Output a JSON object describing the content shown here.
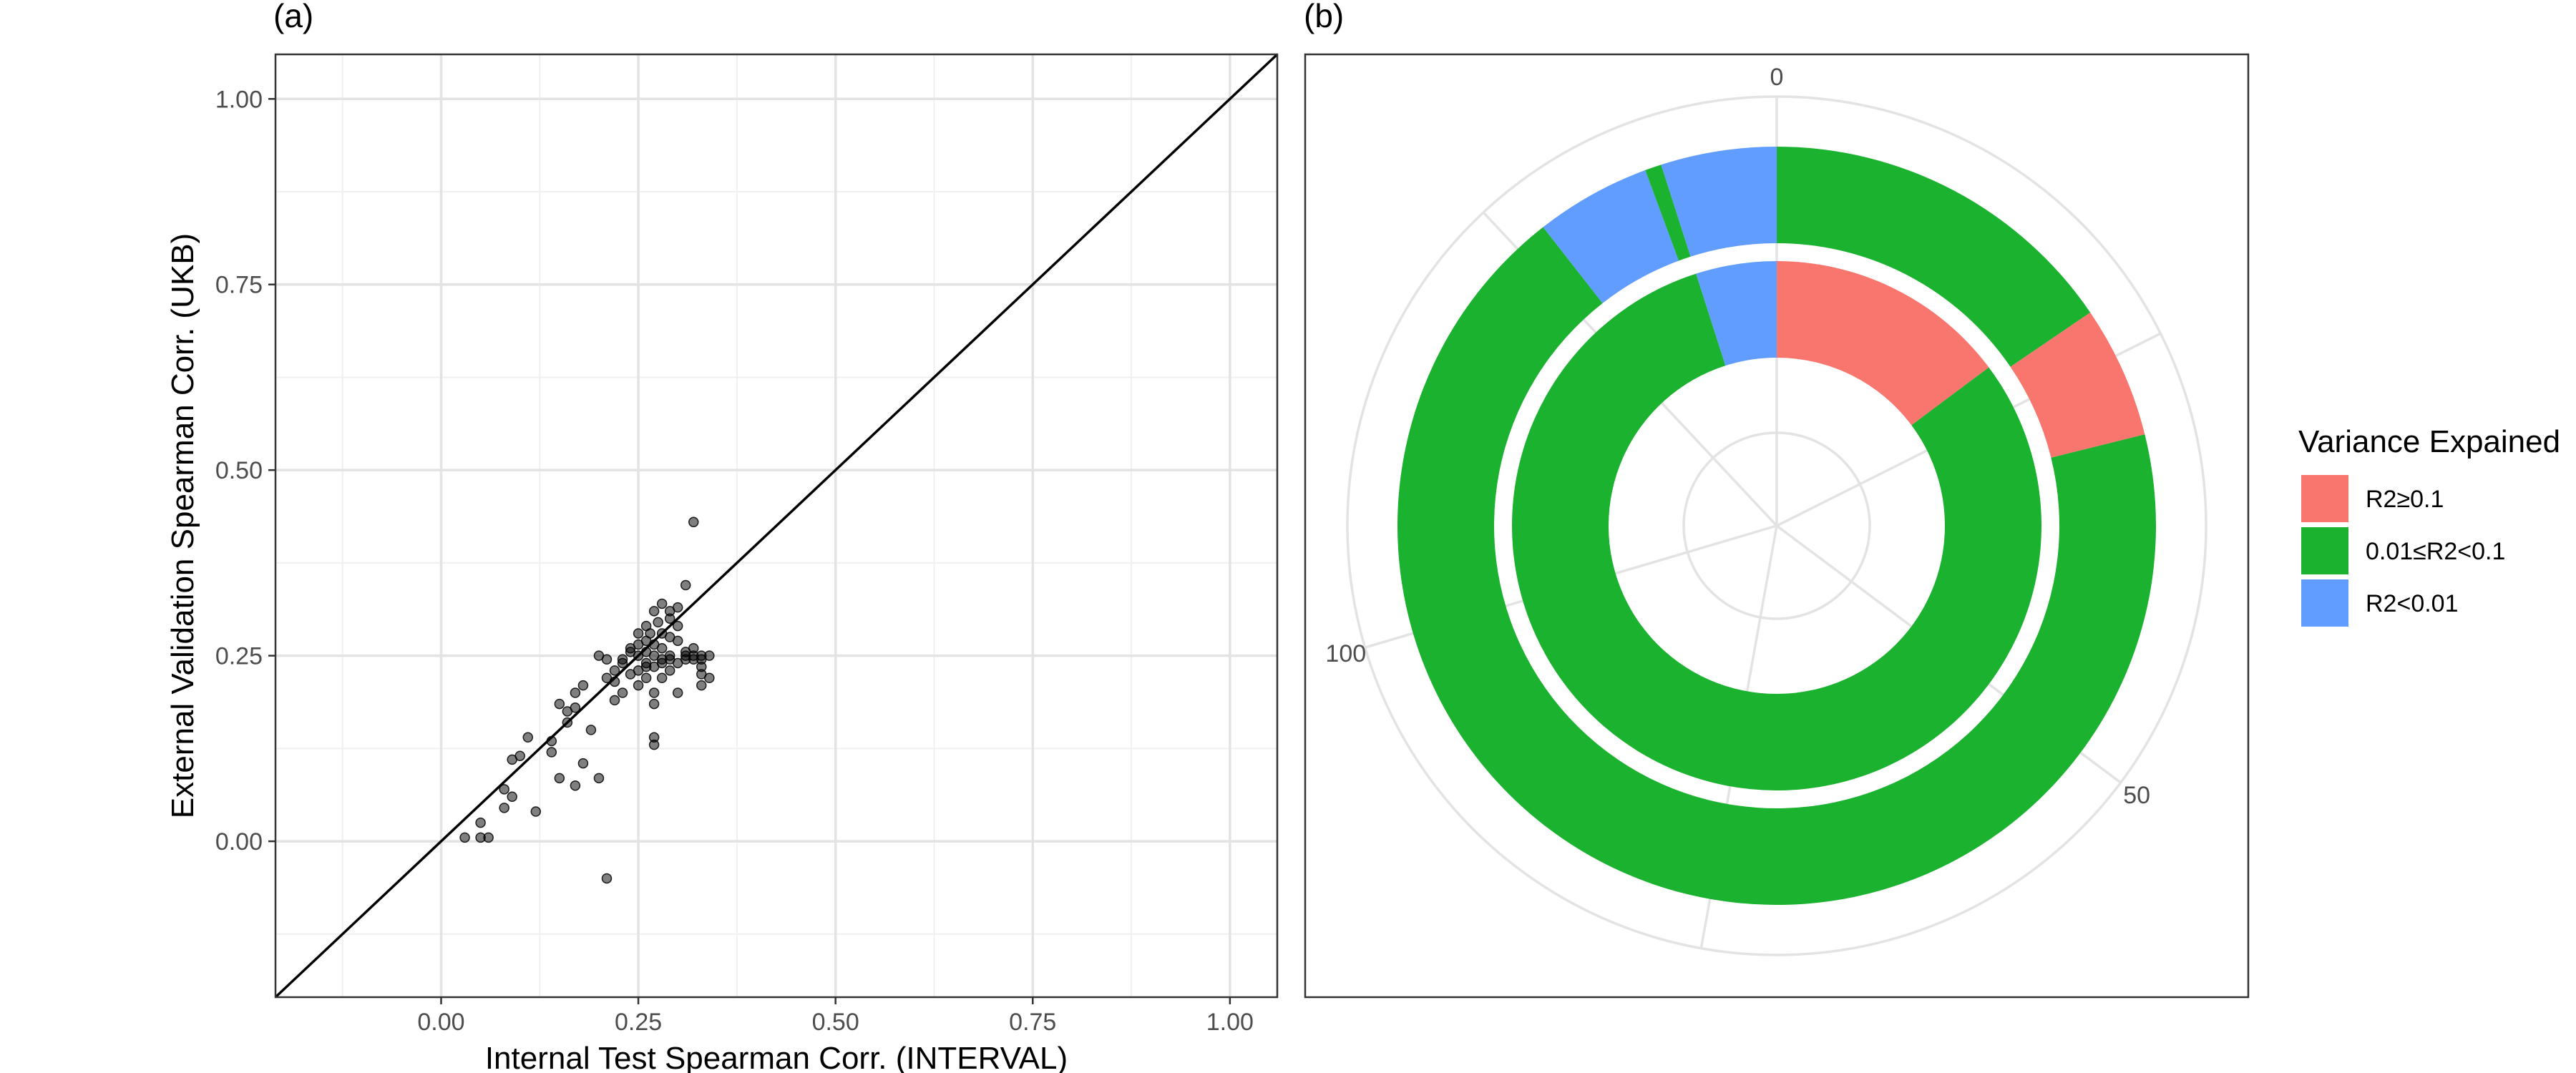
{
  "chart_data": [
    {
      "type": "scatter",
      "panel_label": "(a)",
      "xlabel": "Internal Test Spearman Corr. (INTERVAL)",
      "ylabel": "External Validation Spearman Corr. (UKB)",
      "xlim": [
        -0.21,
        1.06
      ],
      "ylim": [
        -0.21,
        1.06
      ],
      "x_ticks": [
        0.0,
        0.25,
        0.5,
        0.75,
        1.0
      ],
      "x_tick_labels": [
        "0.00",
        "0.25",
        "0.50",
        "0.75",
        "1.00"
      ],
      "y_ticks": [
        0.0,
        0.25,
        0.5,
        0.75,
        1.0
      ],
      "y_tick_labels": [
        "0.00",
        "0.25",
        "0.50",
        "0.75",
        "1.00"
      ],
      "grid": true,
      "reference_line": "y = x",
      "points": [
        [
          0.03,
          0.005
        ],
        [
          0.05,
          0.025
        ],
        [
          0.05,
          0.005
        ],
        [
          0.06,
          0.005
        ],
        [
          0.08,
          0.045
        ],
        [
          0.08,
          0.07
        ],
        [
          0.09,
          0.06
        ],
        [
          0.09,
          0.11
        ],
        [
          0.1,
          0.115
        ],
        [
          0.11,
          0.14
        ],
        [
          0.12,
          0.04
        ],
        [
          0.14,
          0.12
        ],
        [
          0.14,
          0.135
        ],
        [
          0.15,
          0.085
        ],
        [
          0.15,
          0.185
        ],
        [
          0.16,
          0.16
        ],
        [
          0.16,
          0.175
        ],
        [
          0.17,
          0.075
        ],
        [
          0.17,
          0.18
        ],
        [
          0.17,
          0.2
        ],
        [
          0.18,
          0.105
        ],
        [
          0.18,
          0.21
        ],
        [
          0.19,
          0.15
        ],
        [
          0.2,
          0.085
        ],
        [
          0.2,
          0.25
        ],
        [
          0.21,
          0.245
        ],
        [
          0.21,
          0.22
        ],
        [
          0.22,
          0.23
        ],
        [
          0.21,
          -0.05
        ],
        [
          0.22,
          0.19
        ],
        [
          0.23,
          0.24
        ],
        [
          0.23,
          0.2
        ],
        [
          0.24,
          0.225
        ],
        [
          0.24,
          0.26
        ],
        [
          0.25,
          0.25
        ],
        [
          0.25,
          0.28
        ],
        [
          0.25,
          0.21
        ],
        [
          0.25,
          0.23
        ],
        [
          0.26,
          0.24
        ],
        [
          0.26,
          0.27
        ],
        [
          0.26,
          0.255
        ],
        [
          0.26,
          0.29
        ],
        [
          0.26,
          0.22
        ],
        [
          0.27,
          0.25
        ],
        [
          0.27,
          0.31
        ],
        [
          0.27,
          0.2
        ],
        [
          0.27,
          0.14
        ],
        [
          0.27,
          0.13
        ],
        [
          0.27,
          0.185
        ],
        [
          0.27,
          0.265
        ],
        [
          0.28,
          0.28
        ],
        [
          0.28,
          0.24
        ],
        [
          0.28,
          0.22
        ],
        [
          0.28,
          0.32
        ],
        [
          0.28,
          0.26
        ],
        [
          0.29,
          0.31
        ],
        [
          0.29,
          0.25
        ],
        [
          0.29,
          0.275
        ],
        [
          0.29,
          0.23
        ],
        [
          0.29,
          0.3
        ],
        [
          0.3,
          0.315
        ],
        [
          0.3,
          0.24
        ],
        [
          0.3,
          0.27
        ],
        [
          0.3,
          0.2
        ],
        [
          0.3,
          0.29
        ],
        [
          0.31,
          0.25
        ],
        [
          0.31,
          0.345
        ],
        [
          0.31,
          0.255
        ],
        [
          0.32,
          0.25
        ],
        [
          0.32,
          0.26
        ],
        [
          0.32,
          0.43
        ],
        [
          0.32,
          0.245
        ],
        [
          0.33,
          0.245
        ],
        [
          0.33,
          0.225
        ],
        [
          0.33,
          0.21
        ],
        [
          0.33,
          0.25
        ],
        [
          0.34,
          0.25
        ],
        [
          0.34,
          0.22
        ],
        [
          0.33,
          0.235
        ],
        [
          0.24,
          0.255
        ],
        [
          0.25,
          0.265
        ],
        [
          0.26,
          0.235
        ],
        [
          0.27,
          0.235
        ],
        [
          0.28,
          0.245
        ],
        [
          0.29,
          0.245
        ],
        [
          0.31,
          0.245
        ],
        [
          0.22,
          0.215
        ],
        [
          0.23,
          0.245
        ],
        [
          0.265,
          0.28
        ],
        [
          0.275,
          0.295
        ]
      ]
    },
    {
      "type": "pie",
      "subtype": "nested-donut (coord_polar stacked bars)",
      "panel_label": "(b)",
      "theta_tick_labels": [
        "0",
        "50",
        "100"
      ],
      "theta_range": [
        0,
        142
      ],
      "legend_title": "Variance Expained",
      "legend_position": "right",
      "categories": [
        "R2≥0.1",
        "0.01≤R2<0.1",
        "R2<0.01"
      ],
      "colors": {
        "R2≥0.1": "#F8766D",
        "0.01≤R2<0.1": "#1AB22E",
        "R2<0.01": "#619CFF"
      },
      "rings": [
        {
          "ring": "inner",
          "segments": [
            {
              "category": "R2≥0.1",
              "value": 21
            },
            {
              "category": "0.01≤R2<0.1",
              "value": 114
            },
            {
              "category": "R2<0.01",
              "value": 7
            }
          ]
        },
        {
          "ring": "outer",
          "segments": [
            {
              "category": "0.01≤R2<0.1",
              "value": 22
            },
            {
              "category": "R2≥0.1",
              "value": 8
            },
            {
              "category": "0.01≤R2<0.1",
              "value": 97
            },
            {
              "category": "R2<0.01",
              "value": 7
            },
            {
              "category": "0.01≤R2<0.1",
              "value": 1
            },
            {
              "category": "R2<0.01",
              "value": 7
            }
          ]
        }
      ]
    }
  ]
}
